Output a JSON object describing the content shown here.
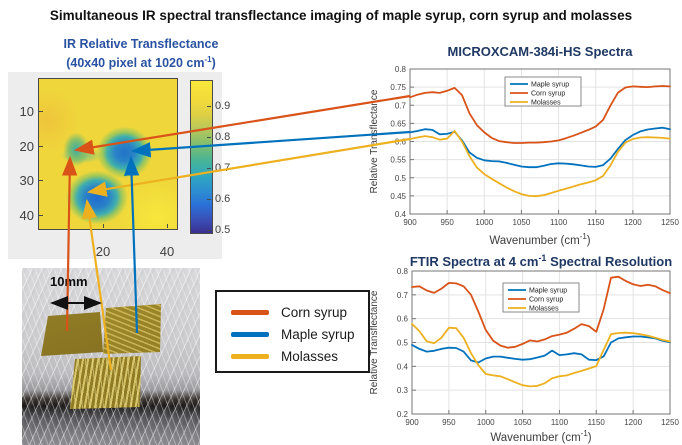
{
  "page_title": "Simultaneous IR spectral transflectance imaging of maple syrup, corn syrup and molasses",
  "colors": {
    "corn": "#D95319",
    "maple": "#0072BD",
    "molasses": "#EDB120",
    "chart_title": "#1F3864",
    "heatmap_title": "#2A52A2",
    "axis": "#767676",
    "tick_text": "#454545",
    "grid": "#E3E3E3"
  },
  "heatmap_panel": {
    "title_line1": "IR Relative Transflectance",
    "title_line2": {
      "pre": "(40x40 pixel at 1020 cm",
      "sup": "-1",
      "post": ")"
    },
    "y_ticks": [
      "10",
      "20",
      "30",
      "40"
    ],
    "x_ticks": [
      "20",
      "40"
    ],
    "colorbar_ticks": [
      "0.9",
      "0.8",
      "0.7",
      "0.6",
      "0.5"
    ]
  },
  "photo": {
    "scale_label": "10mm"
  },
  "sample_legend": {
    "items": [
      {
        "label": "Corn syrup",
        "color_key": "corn"
      },
      {
        "label": "Maple syrup",
        "color_key": "maple"
      },
      {
        "label": "Molasses",
        "color_key": "molasses"
      }
    ]
  },
  "chart_data": [
    {
      "type": "line",
      "title": "MICROXCAM-384i-HS Spectra",
      "xlabel": {
        "pre": "Wavenumber (cm",
        "sup": "-1",
        "post": ")"
      },
      "ylabel": "Relative Transflectance",
      "xlim": [
        900,
        1250
      ],
      "ylim": [
        0.4,
        0.8
      ],
      "xticks": [
        900,
        950,
        1000,
        1050,
        1100,
        1150,
        1200,
        1250
      ],
      "yticks": [
        0.4,
        0.45,
        0.5,
        0.55,
        0.6,
        0.65,
        0.7,
        0.75,
        0.8
      ],
      "grid": true,
      "legend_position": "top-center-inside",
      "x": [
        900,
        910,
        920,
        930,
        940,
        950,
        960,
        970,
        980,
        990,
        1000,
        1010,
        1020,
        1030,
        1040,
        1050,
        1060,
        1070,
        1080,
        1090,
        1100,
        1110,
        1120,
        1130,
        1140,
        1150,
        1160,
        1170,
        1180,
        1190,
        1200,
        1210,
        1220,
        1230,
        1240,
        1250
      ],
      "series": [
        {
          "name": "Maple syrup",
          "color_key": "maple",
          "values": [
            0.625,
            0.629,
            0.634,
            0.632,
            0.62,
            0.621,
            0.627,
            0.603,
            0.57,
            0.555,
            0.548,
            0.546,
            0.545,
            0.541,
            0.536,
            0.531,
            0.529,
            0.529,
            0.533,
            0.538,
            0.54,
            0.539,
            0.537,
            0.534,
            0.531,
            0.53,
            0.535,
            0.553,
            0.58,
            0.604,
            0.618,
            0.628,
            0.633,
            0.636,
            0.638,
            0.634
          ]
        },
        {
          "name": "Corn syrup",
          "color_key": "corn",
          "values": [
            0.722,
            0.729,
            0.734,
            0.736,
            0.734,
            0.74,
            0.748,
            0.728,
            0.678,
            0.645,
            0.625,
            0.61,
            0.601,
            0.598,
            0.596,
            0.596,
            0.597,
            0.597,
            0.598,
            0.6,
            0.603,
            0.609,
            0.616,
            0.624,
            0.632,
            0.641,
            0.66,
            0.7,
            0.735,
            0.749,
            0.752,
            0.751,
            0.75,
            0.752,
            0.753,
            0.752
          ]
        },
        {
          "name": "Molasses",
          "color_key": "molasses",
          "values": [
            0.607,
            0.611,
            0.615,
            0.612,
            0.605,
            0.608,
            0.629,
            0.6,
            0.56,
            0.528,
            0.51,
            0.497,
            0.485,
            0.473,
            0.463,
            0.455,
            0.45,
            0.449,
            0.452,
            0.458,
            0.464,
            0.47,
            0.476,
            0.482,
            0.487,
            0.493,
            0.505,
            0.535,
            0.572,
            0.597,
            0.607,
            0.611,
            0.612,
            0.611,
            0.61,
            0.608
          ]
        }
      ]
    },
    {
      "type": "line",
      "title_parts": {
        "pre": "FTIR Spectra at 4 cm",
        "sup": "-1",
        "post": " Spectral Resolution"
      },
      "xlabel": {
        "pre": "Wavenumber (cm",
        "sup": "-1",
        "post": ")"
      },
      "ylabel": "Relative Transflectance",
      "xlim": [
        900,
        1250
      ],
      "ylim": [
        0.2,
        0.8
      ],
      "xticks": [
        900,
        950,
        1000,
        1050,
        1100,
        1150,
        1200,
        1250
      ],
      "yticks": [
        0.2,
        0.3,
        0.4,
        0.5,
        0.6,
        0.7,
        0.8
      ],
      "grid": true,
      "legend_position": "top-center-inside",
      "x": [
        900,
        910,
        920,
        930,
        940,
        950,
        960,
        970,
        980,
        990,
        1000,
        1010,
        1020,
        1030,
        1040,
        1050,
        1060,
        1070,
        1080,
        1090,
        1100,
        1110,
        1120,
        1130,
        1140,
        1150,
        1160,
        1170,
        1180,
        1190,
        1200,
        1210,
        1220,
        1230,
        1240,
        1250
      ],
      "series": [
        {
          "name": "Maple syrup",
          "color_key": "maple",
          "values": [
            0.49,
            0.473,
            0.462,
            0.465,
            0.473,
            0.478,
            0.477,
            0.462,
            0.425,
            0.416,
            0.433,
            0.441,
            0.441,
            0.436,
            0.431,
            0.428,
            0.43,
            0.437,
            0.445,
            0.466,
            0.447,
            0.45,
            0.455,
            0.45,
            0.428,
            0.426,
            0.442,
            0.5,
            0.517,
            0.522,
            0.525,
            0.525,
            0.522,
            0.517,
            0.507,
            0.501
          ]
        },
        {
          "name": "Corn syrup",
          "color_key": "corn",
          "values": [
            0.733,
            0.736,
            0.718,
            0.708,
            0.726,
            0.75,
            0.748,
            0.736,
            0.7,
            0.63,
            0.553,
            0.508,
            0.487,
            0.478,
            0.482,
            0.494,
            0.509,
            0.504,
            0.513,
            0.527,
            0.533,
            0.541,
            0.558,
            0.577,
            0.569,
            0.545,
            0.64,
            0.772,
            0.776,
            0.758,
            0.744,
            0.737,
            0.742,
            0.736,
            0.72,
            0.707
          ]
        },
        {
          "name": "Molasses",
          "color_key": "molasses",
          "values": [
            0.578,
            0.548,
            0.505,
            0.497,
            0.52,
            0.562,
            0.56,
            0.52,
            0.455,
            0.405,
            0.368,
            0.362,
            0.358,
            0.346,
            0.333,
            0.321,
            0.316,
            0.318,
            0.329,
            0.35,
            0.358,
            0.362,
            0.372,
            0.381,
            0.391,
            0.401,
            0.47,
            0.535,
            0.54,
            0.541,
            0.539,
            0.535,
            0.528,
            0.52,
            0.511,
            0.504
          ]
        }
      ]
    }
  ]
}
